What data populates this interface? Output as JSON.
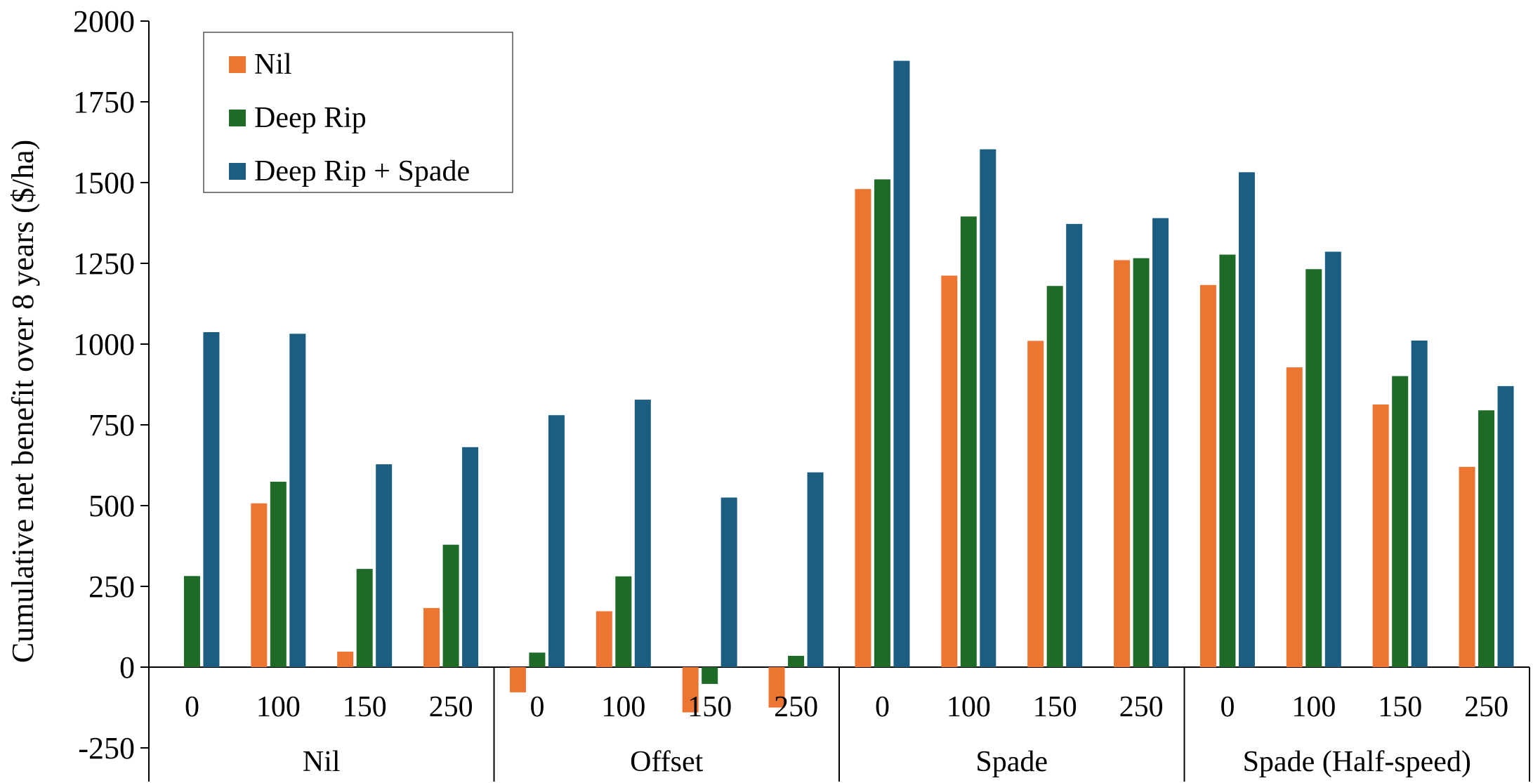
{
  "chart_data": {
    "type": "bar",
    "ylabel": "Cumulative net benefit over 8 years ($/ha)",
    "xlabel": "",
    "ylim": [
      -250,
      2000
    ],
    "yticks": [
      2000,
      1750,
      1500,
      1250,
      1000,
      750,
      500,
      250,
      0,
      -250
    ],
    "ytick_labels": [
      "2000",
      "1750",
      "1500",
      "1250",
      "1000",
      "750",
      "500",
      "250",
      "0",
      "-250"
    ],
    "grid": false,
    "legend_position": "top-left",
    "groups": [
      {
        "name": "Nil",
        "subcategories": [
          "0",
          "100",
          "150",
          "250"
        ]
      },
      {
        "name": "Offset",
        "subcategories": [
          "0",
          "100",
          "150",
          "250"
        ]
      },
      {
        "name": "Spade",
        "subcategories": [
          "0",
          "100",
          "150",
          "250"
        ]
      },
      {
        "name": "Spade (Half-speed)",
        "subcategories": [
          "0",
          "100",
          "150",
          "250"
        ]
      }
    ],
    "series": [
      {
        "name": "Nil",
        "color": "#ED7532",
        "values": [
          0,
          507,
          48,
          183,
          -78,
          173,
          -140,
          -125,
          1480,
          1212,
          1010,
          1260,
          1183,
          928,
          813,
          620
        ]
      },
      {
        "name": "Deep Rip",
        "color": "#1E6B27",
        "values": [
          282,
          574,
          304,
          379,
          45,
          281,
          -52,
          35,
          1510,
          1395,
          1180,
          1266,
          1277,
          1232,
          901,
          795
        ]
      },
      {
        "name": "Deep Rip + Spade",
        "color": "#1B5E82",
        "values": [
          1037,
          1032,
          628,
          681,
          780,
          828,
          525,
          603,
          1877,
          1603,
          1372,
          1390,
          1532,
          1286,
          1011,
          870
        ]
      }
    ]
  }
}
